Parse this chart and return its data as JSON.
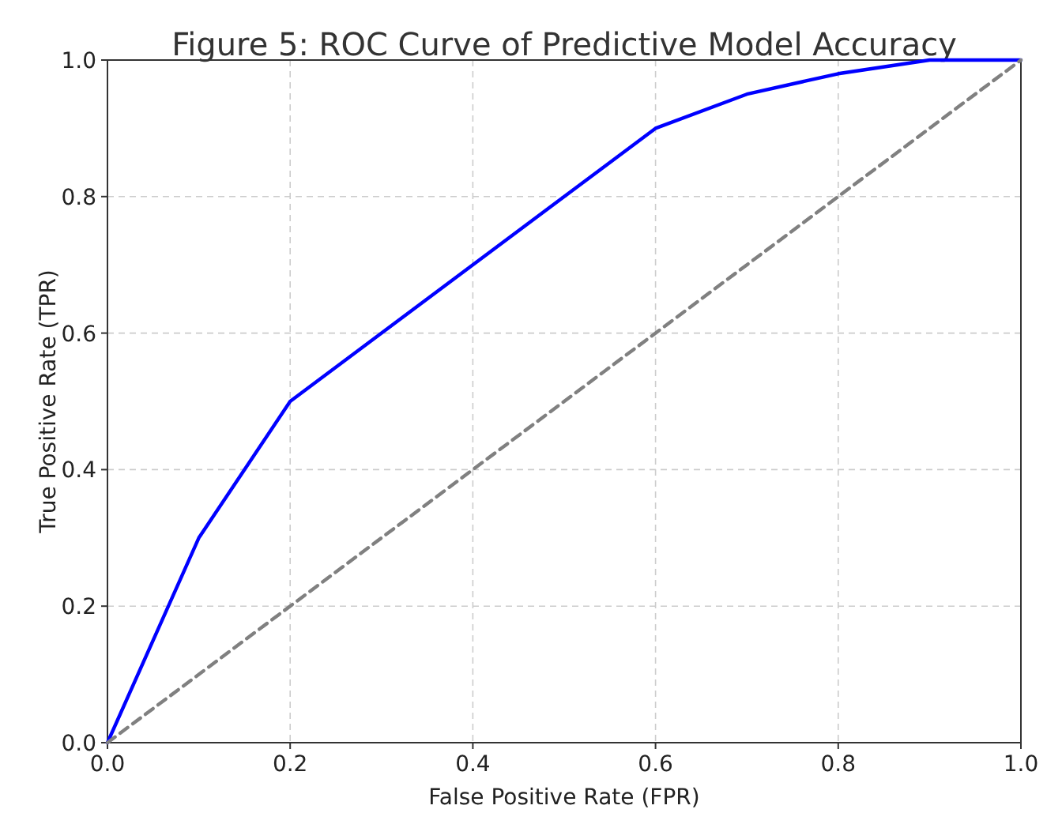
{
  "chart_data": {
    "type": "line",
    "title": "Figure 5: ROC Curve of Predictive Model Accuracy",
    "xlabel": "False Positive Rate (FPR)",
    "ylabel": "True Positive Rate (TPR)",
    "xlim": [
      0,
      1
    ],
    "ylim": [
      0,
      1
    ],
    "xticks": [
      {
        "value": 0,
        "label": "0.0"
      },
      {
        "value": 0.2,
        "label": "0.2"
      },
      {
        "value": 0.4,
        "label": "0.4"
      },
      {
        "value": 0.6,
        "label": "0.6"
      },
      {
        "value": 0.8,
        "label": "0.8"
      },
      {
        "value": 1,
        "label": "1.0"
      }
    ],
    "yticks": [
      {
        "value": 0,
        "label": "0.0"
      },
      {
        "value": 0.2,
        "label": "0.2"
      },
      {
        "value": 0.4,
        "label": "0.4"
      },
      {
        "value": 0.6,
        "label": "0.6"
      },
      {
        "value": 0.8,
        "label": "0.8"
      },
      {
        "value": 1,
        "label": "1.0"
      }
    ],
    "grid": true,
    "series": [
      {
        "color": "#0000ff",
        "line_style": "solid",
        "x": [
          0,
          0.1,
          0.2,
          0.6,
          0.7,
          0.8,
          0.9,
          1.0
        ],
        "values": [
          0,
          0.3,
          0.5,
          0.9,
          0.95,
          0.98,
          1.0,
          1.0
        ]
      },
      {
        "color": "#808080",
        "line_style": "dashed",
        "x": [
          0,
          1
        ],
        "values": [
          0,
          1
        ]
      }
    ]
  }
}
